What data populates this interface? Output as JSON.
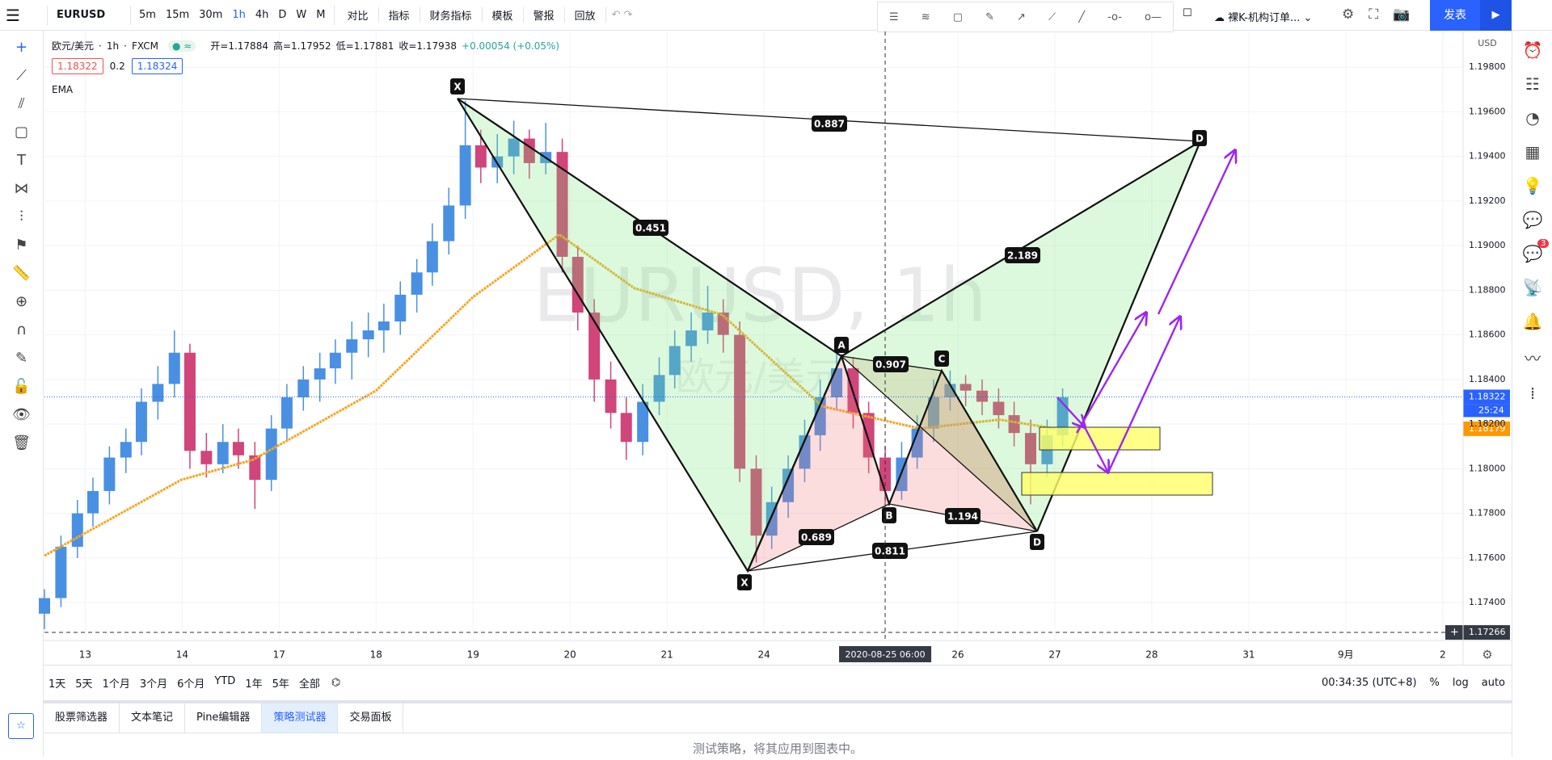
{
  "toolbar": {
    "symbol": "EURUSD",
    "intervals": [
      "5m",
      "15m",
      "30m",
      "1h",
      "4h",
      "D",
      "W",
      "M"
    ],
    "buttons": [
      "对比",
      "指标",
      "财务指标",
      "模板",
      "警报",
      "回放"
    ],
    "template": "裸K-机构订单...",
    "publish": "发表"
  },
  "legend": {
    "name": "欧元/美元",
    "interval": "1h",
    "source": "FXCM",
    "open": "开=1.17884",
    "high": "高=1.17952",
    "low": "低=1.17881",
    "close": "收=1.17938",
    "change": "+0.00054 (+0.05%)",
    "bid": "1.18322",
    "spread": "0.2",
    "ask": "1.18324",
    "indicator": "EMA"
  },
  "chart": {
    "watermark": "EURUSD, 1h",
    "watermark_sub": "欧元/美元",
    "currency": "USD",
    "ylim": [
      1.1723,
      1.1996
    ],
    "xlim": [
      -0.42,
      14.21
    ],
    "yticks": [
      {
        "value": 1.198,
        "label": "1.19800"
      },
      {
        "value": 1.196,
        "label": "1.19600"
      },
      {
        "value": 1.194,
        "label": "1.19400"
      },
      {
        "value": 1.192,
        "label": "1.19200"
      },
      {
        "value": 1.19,
        "label": "1.19000"
      },
      {
        "value": 1.188,
        "label": "1.18800"
      },
      {
        "value": 1.186,
        "label": "1.18600"
      },
      {
        "value": 1.184,
        "label": "1.18400"
      },
      {
        "value": 1.182,
        "label": "1.18200"
      },
      {
        "value": 1.18,
        "label": "1.18000"
      },
      {
        "value": 1.178,
        "label": "1.17800"
      },
      {
        "value": 1.176,
        "label": "1.17600"
      },
      {
        "value": 1.174,
        "label": "1.17400"
      }
    ],
    "xticks": [
      {
        "value": 0,
        "label": "13"
      },
      {
        "value": 1,
        "label": "14"
      },
      {
        "value": 2,
        "label": "17"
      },
      {
        "value": 3,
        "label": "18"
      },
      {
        "value": 4,
        "label": "19"
      },
      {
        "value": 5,
        "label": "20"
      },
      {
        "value": 6,
        "label": "21"
      },
      {
        "value": 7,
        "label": "24"
      },
      {
        "value": 9,
        "label": "26"
      },
      {
        "value": 10,
        "label": "27"
      },
      {
        "value": 11,
        "label": "28"
      },
      {
        "value": 12,
        "label": "31"
      },
      {
        "value": 13,
        "label": "9月"
      },
      {
        "value": 14,
        "label": "2"
      }
    ],
    "last_price": {
      "value": 1.18322,
      "label": "1.18322",
      "countdown": "25:24"
    },
    "ema_price": {
      "value": 1.18179,
      "label": "1.18179"
    },
    "crosshair": {
      "x": 8.25,
      "x_label": "2020-08-25  06:00",
      "y": 1.17266,
      "y_label": "1.17266"
    },
    "candles": [
      [
        -0.42,
        1.1735,
        1.1746,
        1.1728,
        1.1742
      ],
      [
        -0.25,
        1.1742,
        1.177,
        1.1738,
        1.1765
      ],
      [
        -0.08,
        1.1765,
        1.1786,
        1.176,
        1.178
      ],
      [
        0.08,
        1.178,
        1.1796,
        1.1774,
        1.179
      ],
      [
        0.25,
        1.179,
        1.181,
        1.1784,
        1.1805
      ],
      [
        0.42,
        1.1805,
        1.1818,
        1.1798,
        1.1812
      ],
      [
        0.58,
        1.1812,
        1.1836,
        1.1806,
        1.183
      ],
      [
        0.75,
        1.183,
        1.1846,
        1.1822,
        1.1838
      ],
      [
        0.92,
        1.1838,
        1.1862,
        1.1832,
        1.1852
      ],
      [
        1.08,
        1.1852,
        1.1856,
        1.18,
        1.1808
      ],
      [
        1.25,
        1.1808,
        1.1816,
        1.1796,
        1.1802
      ],
      [
        1.42,
        1.1802,
        1.182,
        1.1798,
        1.1812
      ],
      [
        1.58,
        1.1812,
        1.1818,
        1.18,
        1.1806
      ],
      [
        1.75,
        1.1806,
        1.1812,
        1.1782,
        1.1795
      ],
      [
        1.92,
        1.1795,
        1.1824,
        1.179,
        1.1818
      ],
      [
        2.08,
        1.1818,
        1.1838,
        1.1812,
        1.1832
      ],
      [
        2.25,
        1.1832,
        1.1846,
        1.1826,
        1.184
      ],
      [
        2.42,
        1.184,
        1.1852,
        1.183,
        1.1845
      ],
      [
        2.58,
        1.1845,
        1.1858,
        1.1838,
        1.1852
      ],
      [
        2.75,
        1.1852,
        1.1866,
        1.184,
        1.1858
      ],
      [
        2.92,
        1.1858,
        1.187,
        1.185,
        1.1862
      ],
      [
        3.08,
        1.1862,
        1.1874,
        1.1852,
        1.1866
      ],
      [
        3.25,
        1.1866,
        1.1884,
        1.186,
        1.1878
      ],
      [
        3.42,
        1.1878,
        1.1894,
        1.187,
        1.1888
      ],
      [
        3.58,
        1.1888,
        1.191,
        1.1882,
        1.1902
      ],
      [
        3.75,
        1.1902,
        1.1926,
        1.1896,
        1.1918
      ],
      [
        3.92,
        1.1918,
        1.1965,
        1.1912,
        1.1945
      ],
      [
        4.08,
        1.1945,
        1.1952,
        1.1928,
        1.1935
      ],
      [
        4.25,
        1.1935,
        1.195,
        1.1928,
        1.194
      ],
      [
        4.42,
        1.194,
        1.1956,
        1.1932,
        1.1948
      ],
      [
        4.58,
        1.1948,
        1.1952,
        1.193,
        1.1937
      ],
      [
        4.75,
        1.1937,
        1.1955,
        1.1932,
        1.1942
      ],
      [
        4.92,
        1.1942,
        1.1948,
        1.1888,
        1.1895
      ],
      [
        5.08,
        1.1895,
        1.19,
        1.1862,
        1.187
      ],
      [
        5.25,
        1.187,
        1.1876,
        1.183,
        1.184
      ],
      [
        5.42,
        1.184,
        1.1848,
        1.1818,
        1.1825
      ],
      [
        5.58,
        1.1825,
        1.1832,
        1.1804,
        1.1812
      ],
      [
        5.75,
        1.1812,
        1.1838,
        1.1806,
        1.183
      ],
      [
        5.92,
        1.183,
        1.185,
        1.1824,
        1.1842
      ],
      [
        6.08,
        1.1842,
        1.1862,
        1.1836,
        1.1855
      ],
      [
        6.25,
        1.1855,
        1.187,
        1.1848,
        1.1862
      ],
      [
        6.42,
        1.1862,
        1.1882,
        1.1856,
        1.187
      ],
      [
        6.58,
        1.187,
        1.1876,
        1.1852,
        1.186
      ],
      [
        6.75,
        1.186,
        1.1866,
        1.1794,
        1.18
      ],
      [
        6.92,
        1.18,
        1.1806,
        1.1758,
        1.177
      ],
      [
        7.08,
        1.177,
        1.1792,
        1.1764,
        1.1785
      ],
      [
        7.25,
        1.1785,
        1.1806,
        1.1778,
        1.18
      ],
      [
        7.42,
        1.18,
        1.1822,
        1.1794,
        1.1815
      ],
      [
        7.58,
        1.1815,
        1.184,
        1.1808,
        1.1832
      ],
      [
        7.75,
        1.1832,
        1.1852,
        1.1826,
        1.1845
      ],
      [
        7.92,
        1.1845,
        1.185,
        1.1818,
        1.1825
      ],
      [
        8.08,
        1.1825,
        1.183,
        1.1798,
        1.1805
      ],
      [
        8.25,
        1.1805,
        1.181,
        1.1784,
        1.179
      ],
      [
        8.42,
        1.179,
        1.1812,
        1.1786,
        1.1805
      ],
      [
        8.58,
        1.1805,
        1.1824,
        1.18,
        1.1818
      ],
      [
        8.75,
        1.1818,
        1.184,
        1.1812,
        1.1832
      ],
      [
        8.92,
        1.1832,
        1.1844,
        1.1826,
        1.1838
      ],
      [
        9.08,
        1.1838,
        1.1842,
        1.1828,
        1.1835
      ],
      [
        9.25,
        1.1835,
        1.184,
        1.1824,
        1.183
      ],
      [
        9.42,
        1.183,
        1.1836,
        1.1818,
        1.1824
      ],
      [
        9.58,
        1.1824,
        1.183,
        1.181,
        1.1816
      ],
      [
        9.75,
        1.1816,
        1.1822,
        1.1784,
        1.1802
      ],
      [
        9.92,
        1.1802,
        1.1822,
        1.1796,
        1.1815
      ],
      [
        10.08,
        1.1815,
        1.1836,
        1.181,
        1.1832
      ]
    ],
    "ema": {
      "x": [
        -0.42,
        0.99,
        1.73,
        3.0,
        4.0,
        4.89,
        5.66,
        6.57,
        7.6,
        8.61,
        9.43,
        10.0
      ],
      "values": [
        1.1761,
        1.1795,
        1.1804,
        1.1835,
        1.1877,
        1.1905,
        1.1881,
        1.1869,
        1.1828,
        1.1818,
        1.1822,
        1.1818
      ]
    },
    "pattern_points": [
      "X",
      "A",
      "C",
      "B",
      "D",
      "X",
      "D"
    ],
    "pattern_ratios": [
      "0.887",
      "0.451",
      "2.189",
      "0.907",
      "0.689",
      "0.811",
      "1.194"
    ]
  },
  "range_bar": {
    "ranges": [
      "1天",
      "5天",
      "1个月",
      "3个月",
      "6个月",
      "YTD",
      "1年",
      "5年",
      "全部"
    ],
    "clock": "00:34:35 (UTC+8)",
    "percent": "%",
    "log": "log",
    "auto": "auto"
  },
  "sidebar": {
    "badge": "3"
  },
  "bottom_panel": {
    "tabs": [
      "股票筛选器",
      "文本笔记",
      "Pine编辑器",
      "策略测试器",
      "交易面板"
    ],
    "message": "测试策略，将其应用到图表中。"
  }
}
